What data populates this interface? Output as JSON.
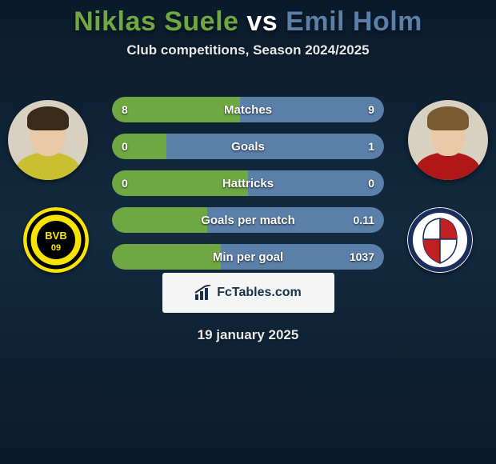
{
  "header": {
    "title_p1": "Niklas Suele",
    "title_vs": " vs ",
    "title_p2": "Emil Holm",
    "subtitle": "Club competitions, Season 2024/2025"
  },
  "colors": {
    "accent_p1": "#6fa843",
    "accent_p2": "#5a7fa8",
    "bar_bg": "#1e3a52",
    "badge_p1_outer": "#f9e400",
    "badge_p1_inner": "#000000",
    "badge_p2_bg": "#ffffff",
    "badge_p2_ring": "#1a2e5c",
    "badge_p2_red": "#c02020",
    "p1_hair": "#3a2a1a",
    "p1_shirt": "#c8c030",
    "p2_hair": "#7a5a30",
    "p2_shirt": "#b01818"
  },
  "stats": [
    {
      "label": "Matches",
      "left_val": "8",
      "right_val": "9",
      "left_pct": 47,
      "right_pct": 53
    },
    {
      "label": "Goals",
      "left_val": "0",
      "right_val": "1",
      "left_pct": 20,
      "right_pct": 80
    },
    {
      "label": "Hattricks",
      "left_val": "0",
      "right_val": "0",
      "left_pct": 50,
      "right_pct": 50
    },
    {
      "label": "Goals per match",
      "left_val": "",
      "right_val": "0.11",
      "left_pct": 35,
      "right_pct": 65
    },
    {
      "label": "Min per goal",
      "left_val": "",
      "right_val": "1037",
      "left_pct": 40,
      "right_pct": 60
    }
  ],
  "watermark": "FcTables.com",
  "date": "19 january 2025"
}
